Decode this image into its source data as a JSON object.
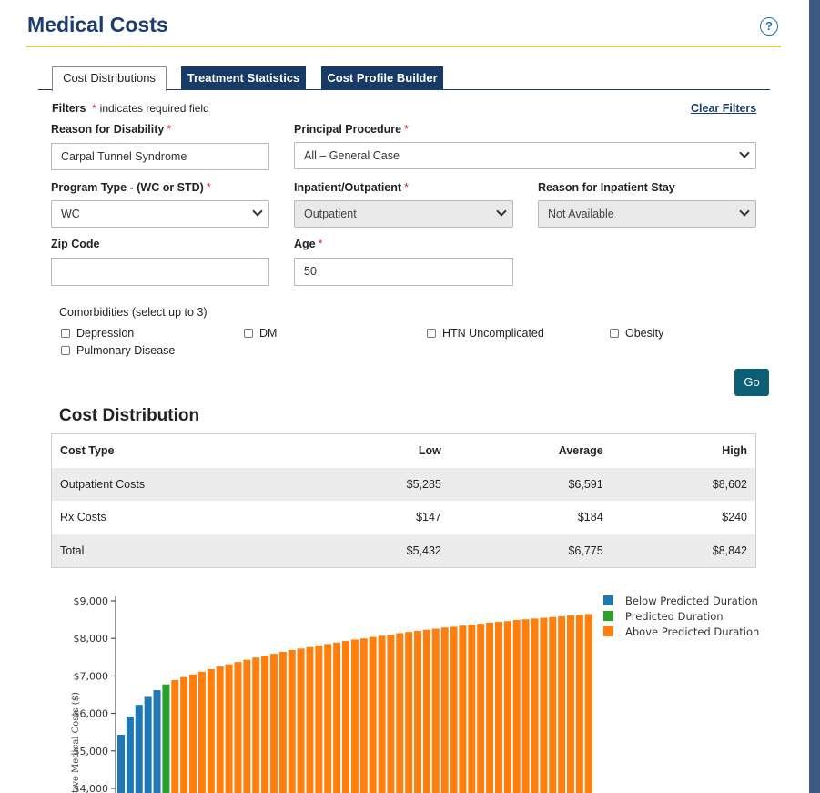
{
  "header": {
    "title": "Medical Costs",
    "help_glyph": "?"
  },
  "tabs": [
    {
      "label": "Cost Distributions",
      "active": true
    },
    {
      "label": "Treatment Statistics",
      "active": false
    },
    {
      "label": "Cost Profile Builder",
      "active": false
    }
  ],
  "filters": {
    "title": "Filters",
    "required_note": "indicates required field",
    "required_marker": "*",
    "clear_label": "Clear Filters",
    "reason_for_disability": {
      "label": "Reason for Disability",
      "value": "Carpal Tunnel Syndrome"
    },
    "principal_procedure": {
      "label": "Principal Procedure",
      "value": "All – General Case"
    },
    "program_type": {
      "label": "Program Type - (WC or STD)",
      "value": "WC"
    },
    "inpatient_outpatient": {
      "label": "Inpatient/Outpatient",
      "value": "Outpatient"
    },
    "reason_for_inpatient_stay": {
      "label": "Reason for Inpatient Stay",
      "value": "Not Available"
    },
    "zip_code": {
      "label": "Zip Code",
      "value": ""
    },
    "age": {
      "label": "Age",
      "value": "50"
    },
    "comorbidities": {
      "label": "Comorbidities (select up to 3)",
      "options": [
        "Depression",
        "DM",
        "HTN Uncomplicated",
        "Obesity",
        "Pulmonary Disease"
      ]
    },
    "go_label": "Go"
  },
  "cost_distribution": {
    "title": "Cost Distribution",
    "columns": [
      "Cost Type",
      "Low",
      "Average",
      "High"
    ],
    "rows": [
      [
        "Outpatient Costs",
        "$5,285",
        "$6,591",
        "$8,602"
      ],
      [
        "Rx Costs",
        "$147",
        "$184",
        "$240"
      ],
      [
        "Total",
        "$5,432",
        "$6,775",
        "$8,842"
      ]
    ]
  },
  "colors": {
    "below": "#1f77b4",
    "predicted": "#2ca02c",
    "above": "#ff7f0e",
    "accent_rule": "#e8c547",
    "brand": "#1c3d6e"
  },
  "chart_data": {
    "type": "bar",
    "ylabel": "tive Medical Costs ($)",
    "y_ticks": [
      "$9,000",
      "$8,000",
      "$7,000",
      "$6,000",
      "$5,000",
      "$4,000"
    ],
    "ylim": [
      4000,
      9000
    ],
    "legend": [
      "Below Predicted Duration",
      "Predicted Duration",
      "Above Predicted Duration"
    ],
    "series": [
      {
        "name": "Below Predicted Duration",
        "values": [
          5432,
          5920,
          6230,
          6440,
          6620
        ]
      },
      {
        "name": "Predicted Duration",
        "values": [
          6775
        ]
      },
      {
        "name": "Above Predicted Duration",
        "values": [
          6890,
          6970,
          7040,
          7110,
          7180,
          7250,
          7310,
          7370,
          7430,
          7490,
          7540,
          7590,
          7640,
          7690,
          7730,
          7770,
          7810,
          7850,
          7890,
          7930,
          7970,
          8000,
          8040,
          8070,
          8100,
          8140,
          8170,
          8200,
          8230,
          8260,
          8290,
          8310,
          8340,
          8370,
          8390,
          8420,
          8440,
          8460,
          8490,
          8510,
          8530,
          8550,
          8570,
          8590,
          8610,
          8630,
          8650,
          8670,
          8690,
          8710,
          8720,
          8740,
          8760,
          8770,
          8790,
          8800,
          8810,
          8820,
          8830,
          8842
        ]
      }
    ]
  }
}
